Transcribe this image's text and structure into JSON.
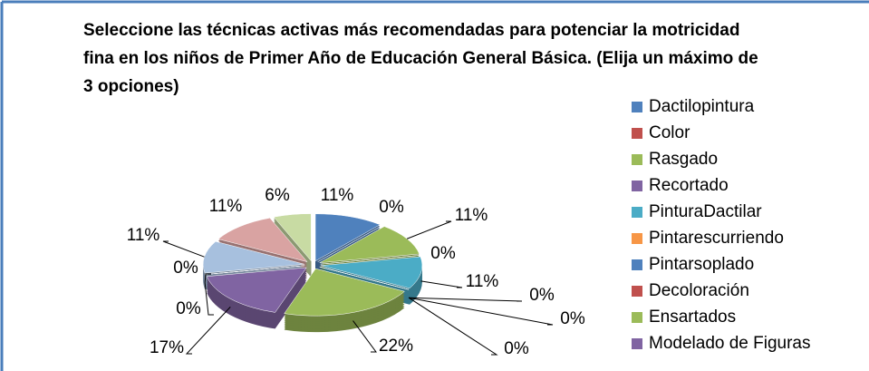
{
  "chart_data": {
    "type": "pie",
    "title": "Seleccione las técnicas activas más recomendadas para potenciar la motricidad fina en los niños de Primer Año de Educación General Básica. (Elija un máximo de 3 opciones)",
    "categories": [
      "Dactilopintura",
      "Color",
      "Rasgado",
      "Recortado",
      "PinturaDactilar",
      "Pintarescurriendo",
      "Pintarsoplado",
      "Decoloración",
      "Ensartados",
      "Modelado de Figuras",
      null,
      null,
      null,
      null,
      null
    ],
    "values": [
      11,
      0,
      11,
      0,
      11,
      0,
      0,
      0,
      22,
      17,
      0,
      0,
      11,
      11,
      6
    ],
    "value_labels": [
      "11%",
      "0%",
      "11%",
      "0%",
      "11%",
      "0%",
      "0%",
      "0%",
      "22%",
      "17%",
      "0%",
      "0%",
      "11%",
      "11%",
      "6%"
    ],
    "colors": [
      "#4F81BD",
      "#C0504D",
      "#9BBB59",
      "#8064A2",
      "#4BACC6",
      "#F79646",
      "#4F81BD",
      "#C0504D",
      "#9BBB59",
      "#8064A2",
      "#4BACC6",
      "#F79646",
      "#A7C0DE",
      "#D9A3A2",
      "#C8DBA3"
    ],
    "legend": "right"
  }
}
